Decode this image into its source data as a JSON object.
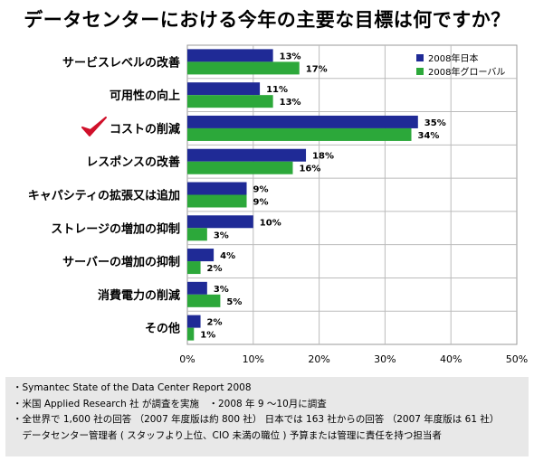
{
  "title": "データセンターにおける今年の主要な目標は何ですか？",
  "colors": {
    "japan": "#1f2a96",
    "global": "#2ca83a",
    "check": "#d0102a",
    "grid": "#bbbbbb",
    "notes_bg": "#e8e8e8"
  },
  "chart_data": {
    "type": "bar",
    "orientation": "horizontal",
    "categories": [
      "サービスレベルの改善",
      "可用性の向上",
      "コストの削減",
      "レスポンスの改善",
      "キャパシティの拡張又は追加",
      "ストレージの増加の抑制",
      "サーバーの増加の抑制",
      "消費電力の削減",
      "その他"
    ],
    "highlight_category_index": 2,
    "highlight_marker": "checkmark-icon",
    "series": [
      {
        "name": "2008年日本",
        "values": [
          13,
          11,
          35,
          18,
          9,
          10,
          4,
          3,
          2
        ]
      },
      {
        "name": "2008年グローバル",
        "values": [
          17,
          13,
          34,
          16,
          9,
          3,
          2,
          5,
          1
        ]
      }
    ],
    "value_labels_suffix": "%",
    "xlim": [
      0,
      50
    ],
    "xticks": [
      0,
      10,
      20,
      30,
      40,
      50
    ],
    "xtick_labels": [
      "0%",
      "10%",
      "20%",
      "30%",
      "40%",
      "50%"
    ],
    "grid": true,
    "legend_position": "top-right",
    "xlabel": "",
    "ylabel": ""
  },
  "notes": [
    "・Symantec State of the Data Center Report 2008",
    "・米国 Applied Research 社 が調査を実施　・2008 年 9 〜10月に調査",
    "・全世界で 1,600 社の回答 （2007 年度版は約 800 社） 日本では 163 社からの回答 （2007 年度版は 61 社）",
    "　データセンター管理者 ( スタッフより上位、CIO 未満の職位 ) 予算または管理に責任を持つ担当者"
  ]
}
